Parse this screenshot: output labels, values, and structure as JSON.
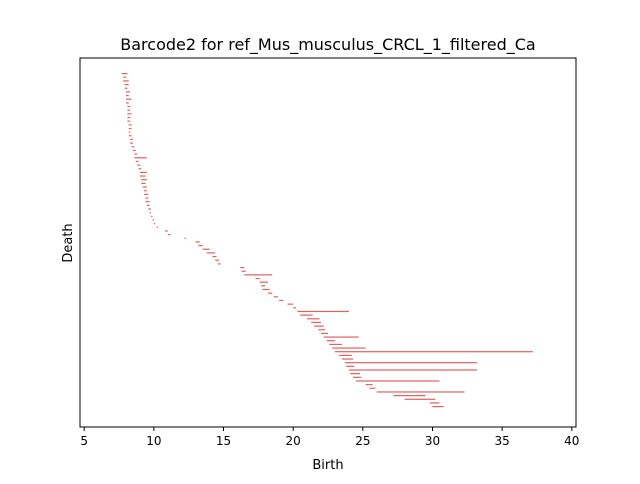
{
  "chart_data": {
    "type": "barcode",
    "title": "Barcode2 for ref_Mus_musculus_CRCL_1_filtered_Ca",
    "xlabel": "Birth",
    "ylabel": "Death",
    "xlim": [
      4.7,
      40.3
    ],
    "x_ticks": [
      5,
      10,
      15,
      20,
      25,
      30,
      35,
      40
    ],
    "x_tick_labels": [
      "5",
      "10",
      "15",
      "20",
      "25",
      "30",
      "35",
      "40"
    ],
    "y_ticks_shown": false,
    "bar_color": "#e06060",
    "bars": [
      {
        "start": 7.7,
        "end": 8.1
      },
      {
        "start": 7.8,
        "end": 8.0
      },
      {
        "start": 7.8,
        "end": 8.2
      },
      {
        "start": 7.9,
        "end": 8.2
      },
      {
        "start": 7.9,
        "end": 8.1
      },
      {
        "start": 8.0,
        "end": 8.3
      },
      {
        "start": 8.0,
        "end": 8.2
      },
      {
        "start": 8.0,
        "end": 8.4
      },
      {
        "start": 8.0,
        "end": 8.2
      },
      {
        "start": 8.1,
        "end": 8.3
      },
      {
        "start": 8.1,
        "end": 8.3
      },
      {
        "start": 8.1,
        "end": 8.4
      },
      {
        "start": 8.1,
        "end": 8.3
      },
      {
        "start": 8.1,
        "end": 8.3
      },
      {
        "start": 8.2,
        "end": 8.4
      },
      {
        "start": 8.2,
        "end": 8.4
      },
      {
        "start": 8.2,
        "end": 8.3
      },
      {
        "start": 8.2,
        "end": 8.4
      },
      {
        "start": 8.3,
        "end": 8.5
      },
      {
        "start": 8.3,
        "end": 8.5
      },
      {
        "start": 8.4,
        "end": 8.6
      },
      {
        "start": 8.5,
        "end": 8.7
      },
      {
        "start": 8.6,
        "end": 8.8
      },
      {
        "start": 8.6,
        "end": 9.5
      },
      {
        "start": 8.7,
        "end": 8.9
      },
      {
        "start": 8.8,
        "end": 9.0
      },
      {
        "start": 8.9,
        "end": 9.1
      },
      {
        "start": 9.0,
        "end": 9.5
      },
      {
        "start": 9.0,
        "end": 9.4
      },
      {
        "start": 9.1,
        "end": 9.5
      },
      {
        "start": 9.1,
        "end": 9.4
      },
      {
        "start": 9.2,
        "end": 9.5
      },
      {
        "start": 9.3,
        "end": 9.5
      },
      {
        "start": 9.3,
        "end": 9.6
      },
      {
        "start": 9.4,
        "end": 9.6
      },
      {
        "start": 9.4,
        "end": 9.7
      },
      {
        "start": 9.5,
        "end": 9.7
      },
      {
        "start": 9.6,
        "end": 9.8
      },
      {
        "start": 9.7,
        "end": 9.8
      },
      {
        "start": 9.8,
        "end": 9.9
      },
      {
        "start": 9.9,
        "end": 10.0
      },
      {
        "start": 10.0,
        "end": 10.1
      },
      {
        "start": 10.2,
        "end": 10.3
      },
      {
        "start": 10.8,
        "end": 11.0
      },
      {
        "start": 11.0,
        "end": 11.2
      },
      {
        "start": 12.2,
        "end": 12.3
      },
      {
        "start": 13.0,
        "end": 13.3
      },
      {
        "start": 13.2,
        "end": 13.5
      },
      {
        "start": 13.5,
        "end": 14.0
      },
      {
        "start": 13.8,
        "end": 14.4
      },
      {
        "start": 14.2,
        "end": 14.5
      },
      {
        "start": 14.4,
        "end": 14.7
      },
      {
        "start": 14.6,
        "end": 14.8
      },
      {
        "start": 16.2,
        "end": 16.5
      },
      {
        "start": 16.3,
        "end": 16.6
      },
      {
        "start": 16.5,
        "end": 18.5
      },
      {
        "start": 17.3,
        "end": 17.6
      },
      {
        "start": 17.6,
        "end": 18.2
      },
      {
        "start": 17.7,
        "end": 18.0
      },
      {
        "start": 17.8,
        "end": 18.3
      },
      {
        "start": 18.2,
        "end": 18.5
      },
      {
        "start": 18.6,
        "end": 18.9
      },
      {
        "start": 19.0,
        "end": 19.3
      },
      {
        "start": 19.6,
        "end": 20.0
      },
      {
        "start": 20.0,
        "end": 20.2
      },
      {
        "start": 20.3,
        "end": 24.0
      },
      {
        "start": 20.5,
        "end": 21.4
      },
      {
        "start": 21.0,
        "end": 21.9
      },
      {
        "start": 21.3,
        "end": 22.0
      },
      {
        "start": 21.5,
        "end": 22.2
      },
      {
        "start": 21.8,
        "end": 22.3
      },
      {
        "start": 22.0,
        "end": 22.5
      },
      {
        "start": 22.2,
        "end": 24.7
      },
      {
        "start": 22.4,
        "end": 23.0
      },
      {
        "start": 22.6,
        "end": 23.5
      },
      {
        "start": 22.8,
        "end": 25.2
      },
      {
        "start": 23.0,
        "end": 37.2
      },
      {
        "start": 23.3,
        "end": 24.2
      },
      {
        "start": 23.5,
        "end": 24.3
      },
      {
        "start": 23.7,
        "end": 33.2
      },
      {
        "start": 23.8,
        "end": 24.4
      },
      {
        "start": 24.0,
        "end": 33.2
      },
      {
        "start": 24.1,
        "end": 24.8
      },
      {
        "start": 24.3,
        "end": 24.9
      },
      {
        "start": 24.5,
        "end": 30.5
      },
      {
        "start": 25.2,
        "end": 25.7
      },
      {
        "start": 25.5,
        "end": 25.9
      },
      {
        "start": 26.0,
        "end": 32.3
      },
      {
        "start": 27.2,
        "end": 29.5
      },
      {
        "start": 28.0,
        "end": 30.2
      },
      {
        "start": 29.8,
        "end": 30.5
      },
      {
        "start": 30.0,
        "end": 30.8
      }
    ]
  }
}
